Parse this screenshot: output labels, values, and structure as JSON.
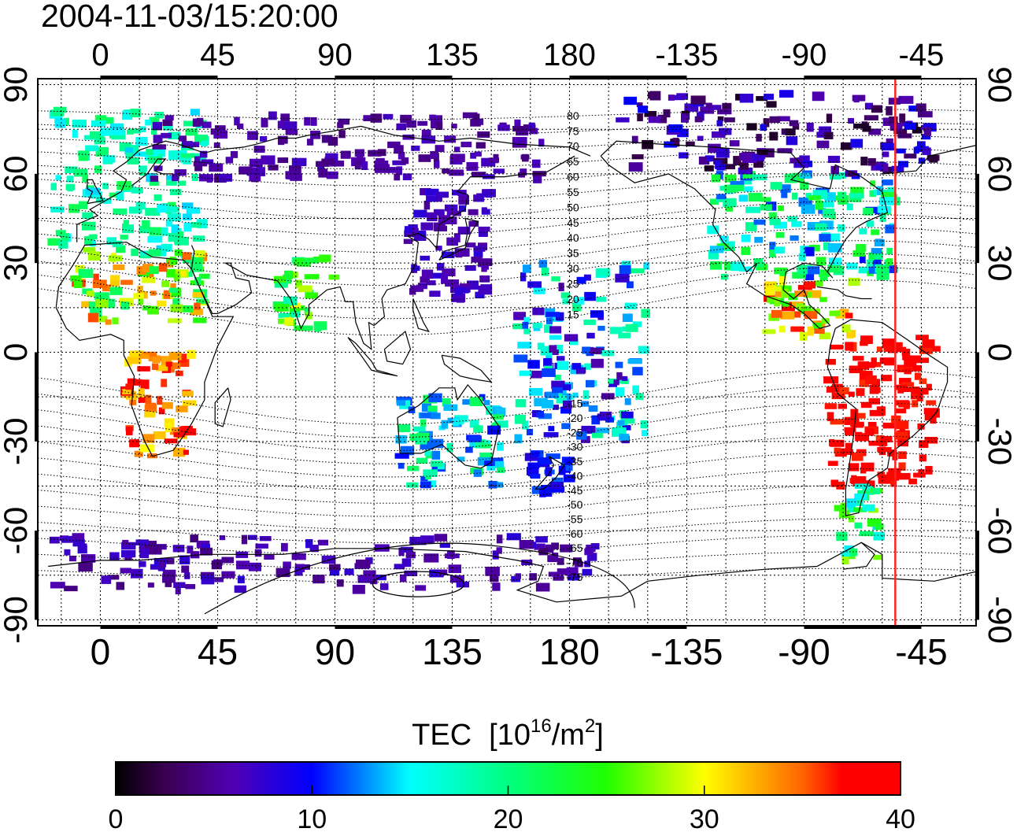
{
  "timestamp": "2004-11-03/15:20:00",
  "map": {
    "lon_ticks": [
      {
        "lon": 0,
        "label": "0"
      },
      {
        "lon": 45,
        "label": "45"
      },
      {
        "lon": 90,
        "label": "90"
      },
      {
        "lon": 135,
        "label": "135"
      },
      {
        "lon": 180,
        "label": "180"
      },
      {
        "lon": 225,
        "label": "-135"
      },
      {
        "lon": 270,
        "label": "-90"
      },
      {
        "lon": 315,
        "label": "-45"
      }
    ],
    "lat_ticks": [
      {
        "lat": 90,
        "label": "90"
      },
      {
        "lat": 60,
        "label": "60"
      },
      {
        "lat": 30,
        "label": "30"
      },
      {
        "lat": 0,
        "label": "0"
      },
      {
        "lat": -30,
        "label": "-30"
      },
      {
        "lat": -60,
        "label": "-60"
      },
      {
        "lat": -90,
        "label": "-90"
      }
    ],
    "lon_range": [
      -24,
      336
    ],
    "lat_range": [
      -92,
      92
    ],
    "grid": true,
    "terminator_lon": 305,
    "terminator_color": "#ff2020",
    "contour_labels_north": [
      {
        "lat": 80,
        "label": "80"
      },
      {
        "lat": 75,
        "label": "75"
      },
      {
        "lat": 70,
        "label": "70"
      },
      {
        "lat": 65,
        "label": "65"
      },
      {
        "lat": 60,
        "label": "60"
      },
      {
        "lat": 55,
        "label": "55"
      },
      {
        "lat": 50,
        "label": "50"
      },
      {
        "lat": 45,
        "label": "45"
      },
      {
        "lat": 40,
        "label": "40"
      },
      {
        "lat": 35,
        "label": "35"
      },
      {
        "lat": 30,
        "label": "30"
      },
      {
        "lat": 25,
        "label": "25"
      },
      {
        "lat": 20,
        "label": "20"
      },
      {
        "lat": 15,
        "label": "15"
      }
    ],
    "contour_labels_south": [
      {
        "lat": -15,
        "label": "-15"
      },
      {
        "lat": -20,
        "label": "-20"
      },
      {
        "lat": -25,
        "label": "-25"
      },
      {
        "lat": -30,
        "label": "-30"
      },
      {
        "lat": -35,
        "label": "-35"
      },
      {
        "lat": -40,
        "label": "-40"
      },
      {
        "lat": -45,
        "label": "-45"
      },
      {
        "lat": -50,
        "label": "-50"
      },
      {
        "lat": -55,
        "label": "-55"
      },
      {
        "lat": -60,
        "label": "-60"
      },
      {
        "lat": -65,
        "label": "-65"
      },
      {
        "lat": -70,
        "label": "-70"
      },
      {
        "lat": -75,
        "label": "-75"
      }
    ],
    "observation_regions": [
      {
        "name": "europe",
        "lon": [
          -18,
          40
        ],
        "lat": [
          32,
          82
        ],
        "tec": [
          14,
          22
        ]
      },
      {
        "name": "east-asia",
        "lon": [
          118,
          150
        ],
        "lat": [
          18,
          55
        ],
        "tec": [
          5,
          8
        ]
      },
      {
        "name": "siberia",
        "lon": [
          20,
          170
        ],
        "lat": [
          58,
          80
        ],
        "tec": [
          4,
          7
        ]
      },
      {
        "name": "north-america",
        "lon": [
          235,
          305
        ],
        "lat": [
          25,
          60
        ],
        "tec": [
          10,
          24
        ]
      },
      {
        "name": "canada-arctic",
        "lon": [
          200,
          320
        ],
        "lat": [
          60,
          87
        ],
        "tec": [
          1,
          10
        ]
      },
      {
        "name": "central-america",
        "lon": [
          255,
          290
        ],
        "lat": [
          5,
          25
        ],
        "tec": [
          24,
          38
        ]
      },
      {
        "name": "south-america",
        "lon": [
          280,
          320
        ],
        "lat": [
          -45,
          5
        ],
        "tec": [
          36,
          40
        ]
      },
      {
        "name": "patagonia",
        "lon": [
          283,
          300
        ],
        "lat": [
          -70,
          -45
        ],
        "tec": [
          14,
          30
        ]
      },
      {
        "name": "africa-north",
        "lon": [
          -10,
          40
        ],
        "lat": [
          10,
          35
        ],
        "tec": [
          20,
          36
        ]
      },
      {
        "name": "africa-south",
        "lon": [
          10,
          35
        ],
        "lat": [
          -35,
          0
        ],
        "tec": [
          30,
          40
        ]
      },
      {
        "name": "india",
        "lon": [
          68,
          90
        ],
        "lat": [
          8,
          32
        ],
        "tec": [
          18,
          30
        ]
      },
      {
        "name": "australia",
        "lon": [
          115,
          155
        ],
        "lat": [
          -45,
          -15
        ],
        "tec": [
          10,
          22
        ]
      },
      {
        "name": "new-zealand",
        "lon": [
          165,
          180
        ],
        "lat": [
          -48,
          -34
        ],
        "tec": [
          8,
          12
        ]
      },
      {
        "name": "pacific",
        "lon": [
          160,
          210
        ],
        "lat": [
          -30,
          30
        ],
        "tec": [
          5,
          20
        ]
      },
      {
        "name": "antarctica",
        "lon": [
          -20,
          190
        ],
        "lat": [
          -80,
          -62
        ],
        "tec": [
          4,
          8
        ]
      }
    ]
  },
  "colorbar": {
    "title": "TEC",
    "unit_prefix": "[10",
    "unit_exponent": "16",
    "unit_mid": "/m",
    "unit_exponent2": "2",
    "unit_suffix": "]",
    "min": 0,
    "max": 40,
    "ticks": [
      {
        "value": 0,
        "label": "0"
      },
      {
        "value": 10,
        "label": "10"
      },
      {
        "value": 20,
        "label": "20"
      },
      {
        "value": 30,
        "label": "30"
      },
      {
        "value": 40,
        "label": "40"
      }
    ],
    "color_stops": [
      {
        "value": 0,
        "color": "#000000"
      },
      {
        "value": 2.5,
        "color": "#3a0050"
      },
      {
        "value": 6,
        "color": "#5000b4"
      },
      {
        "value": 10,
        "color": "#0000ff"
      },
      {
        "value": 15,
        "color": "#00ffff"
      },
      {
        "value": 20,
        "color": "#00ff7f"
      },
      {
        "value": 25,
        "color": "#20ff00"
      },
      {
        "value": 30,
        "color": "#ffff00"
      },
      {
        "value": 35,
        "color": "#ff6400"
      },
      {
        "value": 37,
        "color": "#ff0000"
      },
      {
        "value": 40,
        "color": "#ff0000"
      }
    ]
  }
}
